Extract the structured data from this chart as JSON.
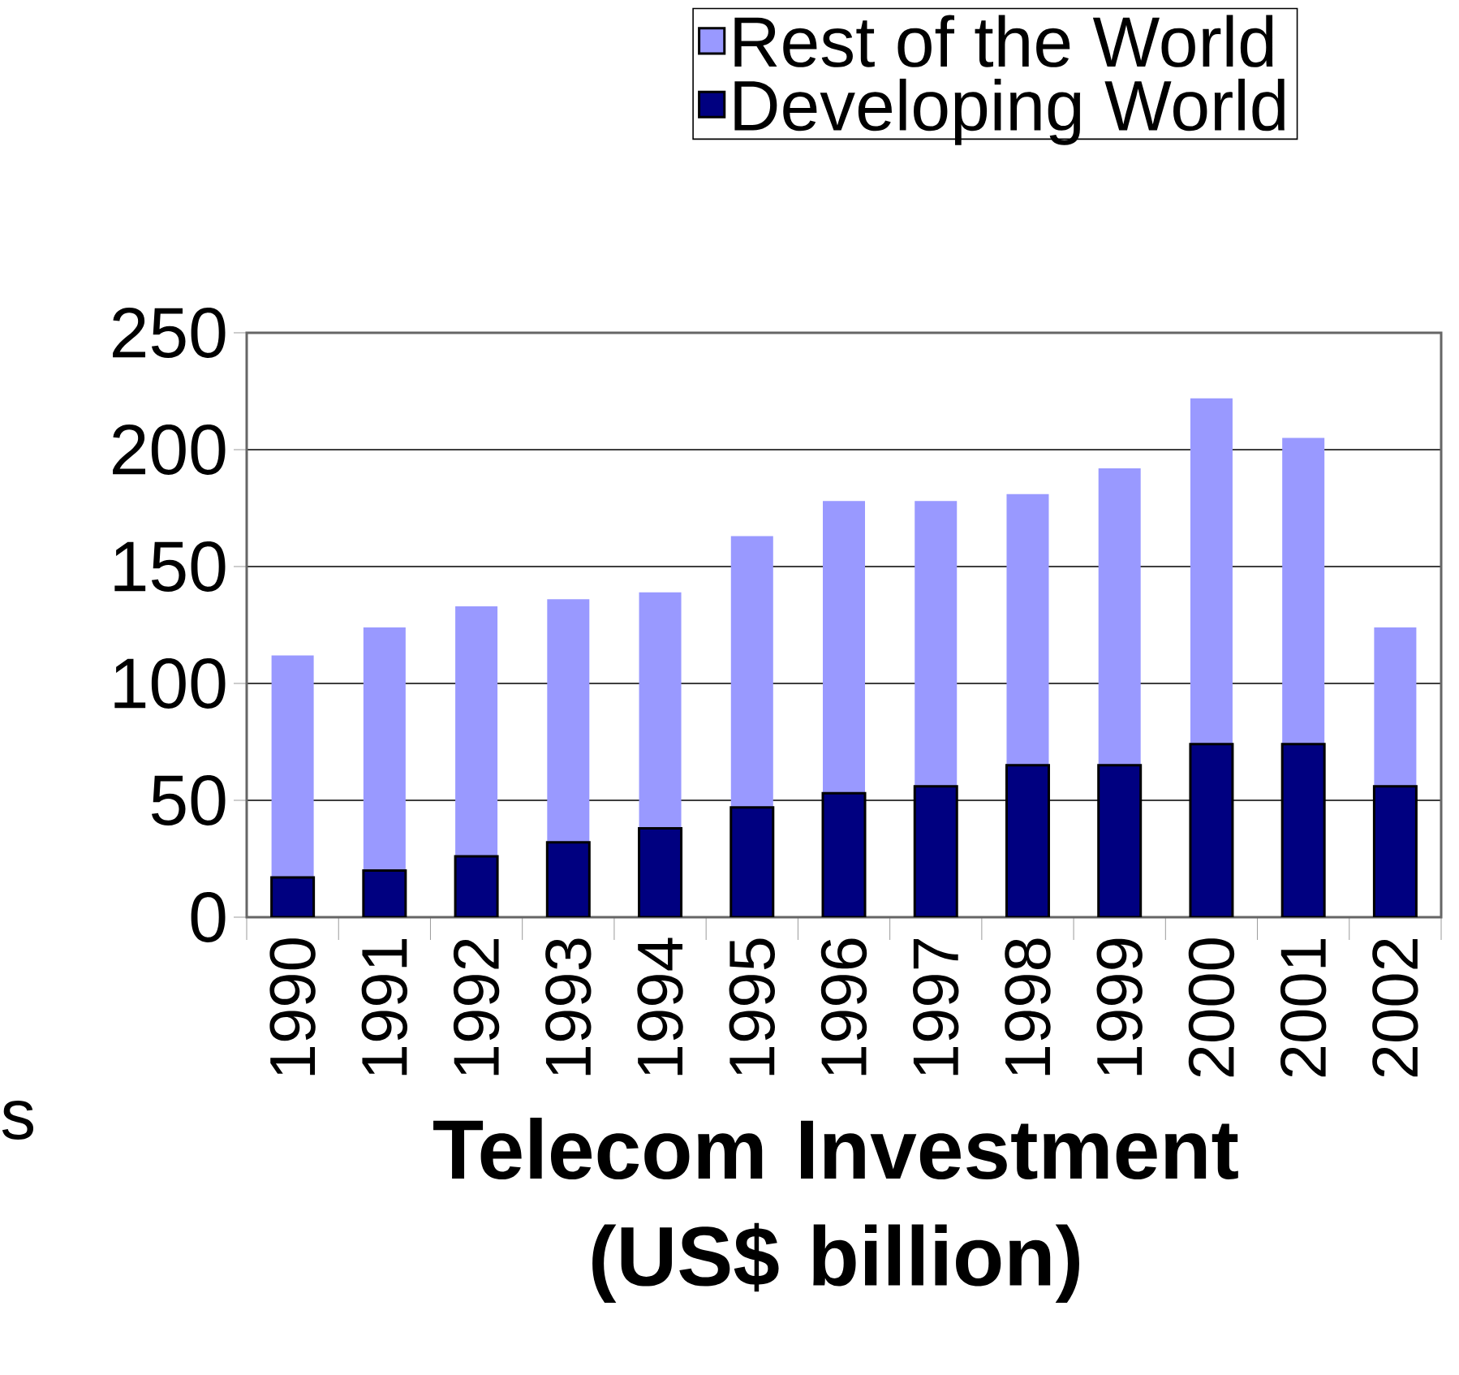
{
  "chart_data": {
    "type": "bar",
    "title": "Telecom Investment (US$ billion)",
    "stacked": true,
    "categories": [
      "1990",
      "1991",
      "1992",
      "1993",
      "1994",
      "1995",
      "1996",
      "1997",
      "1998",
      "1999",
      "2000",
      "2001",
      "2002"
    ],
    "series": [
      {
        "name": "Developing World",
        "color": "#000080",
        "values": [
          17,
          20,
          26,
          32,
          38,
          47,
          53,
          56,
          65,
          65,
          74,
          74,
          56
        ]
      },
      {
        "name": "Rest of the World",
        "color": "#9999ff",
        "values": [
          95,
          104,
          107,
          104,
          101,
          116,
          125,
          122,
          116,
          127,
          148,
          131,
          68
        ]
      }
    ],
    "ylim": [
      0,
      250
    ],
    "yticks": [
      0,
      50,
      100,
      150,
      200,
      250
    ],
    "grid": "y",
    "legend": "top right",
    "annotations": [
      "s"
    ]
  }
}
